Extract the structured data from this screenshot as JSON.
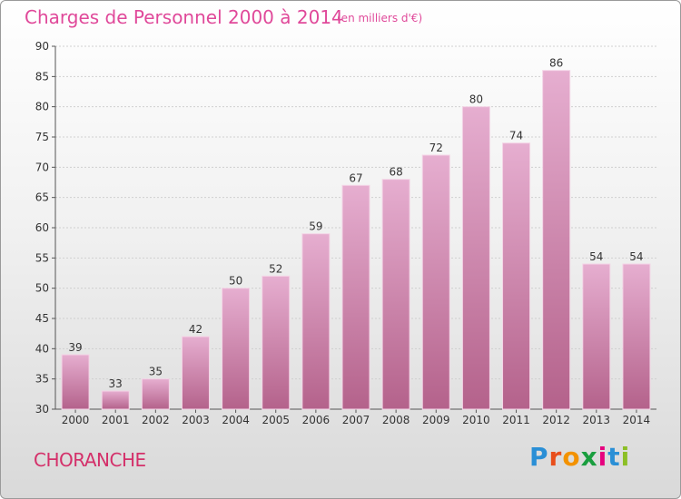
{
  "header": {
    "title": "Charges de Personnel 2000 à 2014",
    "subtitle": "(en milliers d'€)"
  },
  "footer": {
    "commune": "CHORANCHE",
    "logo": "Proxiti",
    "logo_colors": [
      "#2a8fd6",
      "#e84e1b",
      "#f39200",
      "#1a9e3f",
      "#e6007e",
      "#2a8fd6",
      "#8cbf26"
    ]
  },
  "colors": {
    "bar_light": "#e3a6cb",
    "bar_dark": "#b8668f",
    "accent": "#e0499a"
  },
  "chart_data": {
    "type": "bar",
    "categories": [
      "2000",
      "2001",
      "2002",
      "2003",
      "2004",
      "2005",
      "2006",
      "2007",
      "2008",
      "2009",
      "2010",
      "2011",
      "2012",
      "2013",
      "2014"
    ],
    "values": [
      39,
      33,
      35,
      42,
      50,
      52,
      59,
      67,
      68,
      72,
      80,
      74,
      86,
      54,
      54
    ],
    "title": "Charges de Personnel 2000 à 2014",
    "xlabel": "",
    "ylabel": "",
    "ylim": [
      30,
      90
    ],
    "yticks": [
      30,
      35,
      40,
      45,
      50,
      55,
      60,
      65,
      70,
      75,
      80,
      85,
      90
    ],
    "grid": true,
    "legend": "none"
  }
}
